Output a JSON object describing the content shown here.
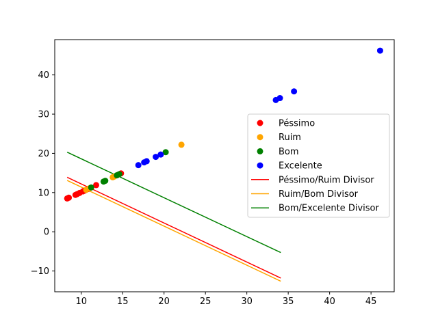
{
  "chart_data": {
    "type": "scatter",
    "title": "",
    "xlabel": "",
    "ylabel": "",
    "xlim": [
      6.8,
      47.8
    ],
    "ylim": [
      -15.3,
      49.0
    ],
    "grid": false,
    "legend_position": "right",
    "x_ticks": [
      {
        "value": 10,
        "label": "10"
      },
      {
        "value": 15,
        "label": "15"
      },
      {
        "value": 20,
        "label": "20"
      },
      {
        "value": 25,
        "label": "25"
      },
      {
        "value": 30,
        "label": "30"
      },
      {
        "value": 35,
        "label": "35"
      },
      {
        "value": 40,
        "label": "40"
      },
      {
        "value": 45,
        "label": "45"
      }
    ],
    "y_ticks": [
      {
        "value": -10,
        "label": "−10"
      },
      {
        "value": 0,
        "label": "0"
      },
      {
        "value": 10,
        "label": "10"
      },
      {
        "value": 20,
        "label": "20"
      },
      {
        "value": 30,
        "label": "30"
      },
      {
        "value": 40,
        "label": "40"
      }
    ],
    "series": [
      {
        "name": "Péssimo",
        "kind": "scatter",
        "color": "#ff0000",
        "points": [
          [
            8.3,
            8.5
          ],
          [
            8.5,
            8.7
          ],
          [
            9.3,
            9.4
          ],
          [
            9.5,
            9.6
          ],
          [
            9.8,
            9.9
          ],
          [
            10.2,
            10.3
          ],
          [
            10.4,
            10.5
          ],
          [
            10.8,
            10.9
          ],
          [
            11.8,
            11.9
          ],
          [
            14.8,
            14.9
          ]
        ]
      },
      {
        "name": "Ruim",
        "kind": "scatter",
        "color": "#ffa500",
        "points": [
          [
            10.6,
            10.7
          ],
          [
            11.0,
            11.1
          ],
          [
            13.8,
            13.9
          ],
          [
            14.0,
            14.1
          ],
          [
            14.4,
            14.5
          ],
          [
            22.1,
            22.2
          ]
        ]
      },
      {
        "name": "Bom",
        "kind": "scatter",
        "color": "#008000",
        "points": [
          [
            11.2,
            11.3
          ],
          [
            12.7,
            12.8
          ],
          [
            12.9,
            13.0
          ],
          [
            14.3,
            14.4
          ],
          [
            14.6,
            14.7
          ],
          [
            20.2,
            20.3
          ]
        ]
      },
      {
        "name": "Excelente",
        "kind": "scatter",
        "color": "#0000ff",
        "points": [
          [
            16.9,
            17.0
          ],
          [
            17.6,
            17.7
          ],
          [
            17.9,
            18.0
          ],
          [
            19.0,
            19.1
          ],
          [
            19.6,
            19.7
          ],
          [
            33.5,
            33.6
          ],
          [
            34.0,
            34.1
          ],
          [
            35.7,
            35.8
          ],
          [
            46.1,
            46.2
          ]
        ]
      },
      {
        "name": "Péssimo/Ruim Divisor",
        "kind": "line",
        "color": "#ff0000",
        "points": [
          [
            8.3,
            13.9
          ],
          [
            34.1,
            -11.8
          ]
        ]
      },
      {
        "name": "Ruim/Bom Divisor",
        "kind": "line",
        "color": "#ffa500",
        "points": [
          [
            8.3,
            13.1
          ],
          [
            34.1,
            -12.6
          ]
        ]
      },
      {
        "name": "Bom/Excelente Divisor",
        "kind": "line",
        "color": "#008000",
        "points": [
          [
            8.3,
            20.3
          ],
          [
            34.1,
            -5.3
          ]
        ]
      }
    ]
  }
}
